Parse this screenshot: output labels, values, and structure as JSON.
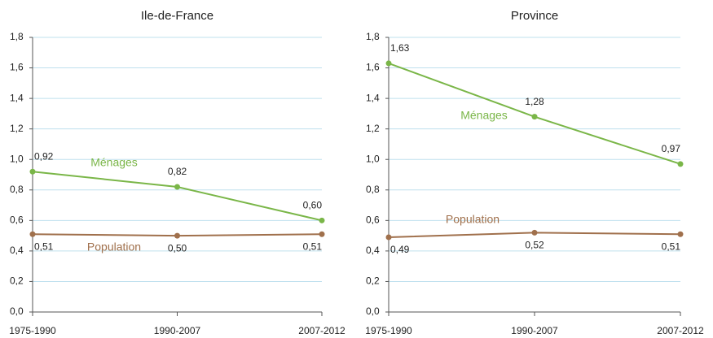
{
  "chart_data": [
    {
      "type": "line",
      "title": "Ile-de-France",
      "categories": [
        "1975-1990",
        "1990-2007",
        "2007-2012"
      ],
      "series": [
        {
          "name": "Ménages",
          "color": "#7ab648",
          "values": [
            0.92,
            0.82,
            0.6
          ],
          "value_labels": [
            "0,92",
            "0,82",
            "0,60"
          ]
        },
        {
          "name": "Population",
          "color": "#a0704c",
          "values": [
            0.51,
            0.5,
            0.51
          ],
          "value_labels": [
            "0,51",
            "0,50",
            "0,51"
          ]
        }
      ],
      "ylim": [
        0,
        1.8
      ],
      "yticks": [
        {
          "value": 0,
          "label": "0,0"
        },
        {
          "value": 0.2,
          "label": "0,2"
        },
        {
          "value": 0.4,
          "label": "0,4"
        },
        {
          "value": 0.6,
          "label": "0,6"
        },
        {
          "value": 0.8,
          "label": "0,8"
        },
        {
          "value": 1.0,
          "label": "1,0"
        },
        {
          "value": 1.2,
          "label": "1,2"
        },
        {
          "value": 1.4,
          "label": "1,4"
        },
        {
          "value": 1.6,
          "label": "1,6"
        },
        {
          "value": 1.8,
          "label": "1,8"
        }
      ],
      "grid": true
    },
    {
      "type": "line",
      "title": "Province",
      "categories": [
        "1975-1990",
        "1990-2007",
        "2007-2012"
      ],
      "series": [
        {
          "name": "Ménages",
          "color": "#7ab648",
          "values": [
            1.63,
            1.28,
            0.97
          ],
          "value_labels": [
            "1,63",
            "1,28",
            "0,97"
          ]
        },
        {
          "name": "Population",
          "color": "#a0704c",
          "values": [
            0.49,
            0.52,
            0.51
          ],
          "value_labels": [
            "0,49",
            "0,52",
            "0,51"
          ]
        }
      ],
      "ylim": [
        0,
        1.8
      ],
      "yticks": [
        {
          "value": 0,
          "label": "0,0"
        },
        {
          "value": 0.2,
          "label": "0,2"
        },
        {
          "value": 0.4,
          "label": "0,4"
        },
        {
          "value": 0.6,
          "label": "0,6"
        },
        {
          "value": 0.8,
          "label": "0,8"
        },
        {
          "value": 1.0,
          "label": "1,0"
        },
        {
          "value": 1.2,
          "label": "1,2"
        },
        {
          "value": 1.4,
          "label": "1,4"
        },
        {
          "value": 1.6,
          "label": "1,6"
        },
        {
          "value": 1.8,
          "label": "1,8"
        }
      ],
      "grid": true
    }
  ]
}
